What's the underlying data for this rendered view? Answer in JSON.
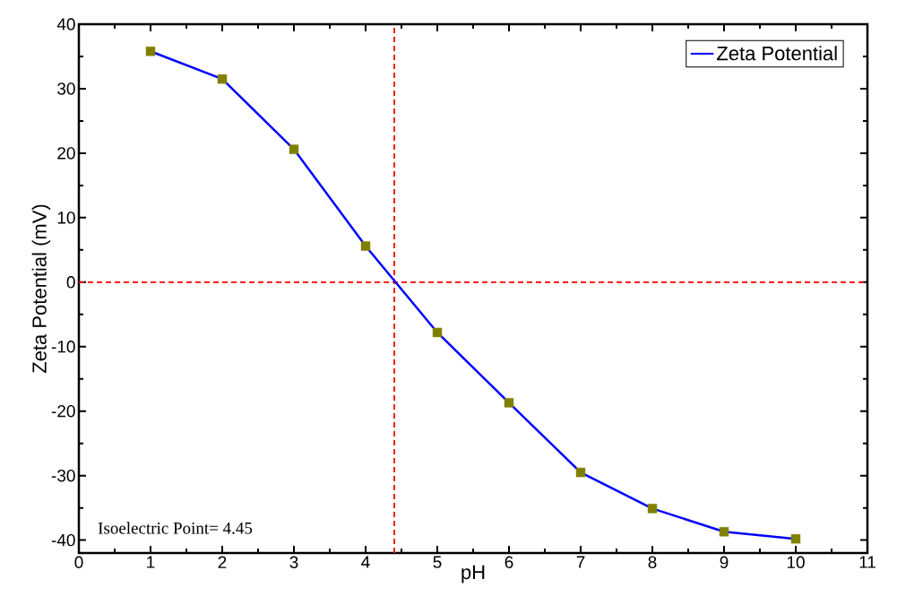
{
  "chart_data": {
    "type": "line",
    "xlabel": "pH",
    "ylabel": "Zeta Potential (mV)",
    "x": [
      1,
      2,
      3,
      4,
      5,
      6,
      7,
      8,
      9,
      10
    ],
    "series": [
      {
        "name": "Zeta Potential",
        "color": "#0000ff",
        "colors": [
          "#808000",
          "#808000",
          "#808000",
          "#808000",
          "#808000",
          "#808000",
          "#808000",
          "#808000",
          "#808000",
          "#808000"
        ],
        "values": [
          35.8,
          31.5,
          20.6,
          5.6,
          -7.8,
          -18.7,
          -29.5,
          -35.1,
          -38.7,
          -39.8
        ]
      }
    ],
    "xlim": [
      0,
      11
    ],
    "ylim": [
      -42,
      40
    ],
    "xticks": [
      0,
      1,
      2,
      3,
      4,
      5,
      6,
      7,
      8,
      9,
      10,
      11
    ],
    "yticks": [
      -40,
      -30,
      -20,
      -10,
      0,
      10,
      20,
      30,
      40
    ],
    "ref_lines": [
      {
        "axis": "x",
        "value": 4.4,
        "color": "#ff0000",
        "line_style": "dashed"
      },
      {
        "axis": "y",
        "value": 0,
        "color": "#ff0000",
        "line_style": "dashed"
      }
    ],
    "annotations": [
      "Isoelectric Point= 4.45"
    ],
    "legend": "top right",
    "marker": "square",
    "line_style": "solid",
    "grid": false
  }
}
